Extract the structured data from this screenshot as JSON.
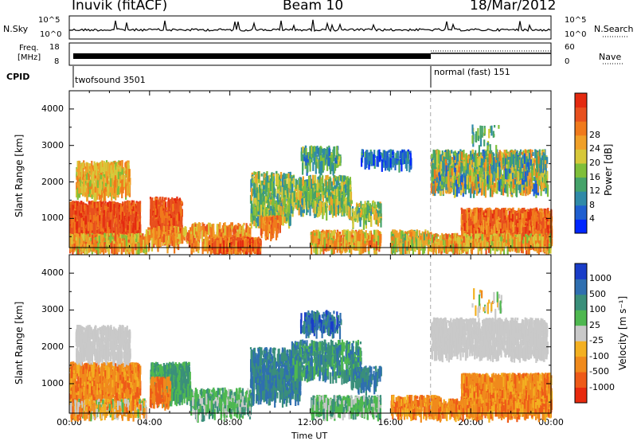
{
  "header": {
    "station": "Inuvik (fitACF)",
    "beam": "Beam 10",
    "date": "18/Mar/2012"
  },
  "strips": {
    "nsky_label": "N.Sky",
    "nsky_ticks": [
      "10^5",
      "10^0"
    ],
    "nsearch_label": "N.Search",
    "nsearch_ticks": [
      "10^5",
      "10^0"
    ],
    "freq_label_1": "Freq.",
    "freq_label_2": "[MHz]",
    "freq_ticks": [
      "18",
      "8"
    ],
    "nave_label": "Nave",
    "nave_ticks": [
      "60",
      "0"
    ],
    "cpid_label": "CPID",
    "cpid_segments": [
      {
        "name": "twofsound 3501"
      },
      {
        "name": "normal (fast) 151"
      }
    ]
  },
  "chart_data": [
    {
      "type": "heatmap",
      "panel": "power",
      "ylabel": "Slant Range [km]",
      "yticks": [
        "1000",
        "2000",
        "3000",
        "4000"
      ],
      "ylim": [
        200,
        4500
      ],
      "colorbar_label": "Power [dB]",
      "colorbar_ticks": [
        "4",
        "8",
        "12",
        "16",
        "20",
        "24",
        "28"
      ],
      "colorbar_colors": [
        "#0026ff",
        "#1f5fd0",
        "#2f8aa8",
        "#45a36a",
        "#7fbf3a",
        "#d7c83a",
        "#f0a028",
        "#f07a1c",
        "#e8501e",
        "#e42a10"
      ],
      "approx_regions": [
        {
          "time": "00:00-03:30",
          "range_km": "700-1500",
          "power_db": "28"
        },
        {
          "time": "00:30-03:00",
          "range_km": "1900-2600",
          "power_db": "20-24"
        },
        {
          "time": "04:00-05:30",
          "range_km": "700-1600",
          "power_db": "24-28"
        },
        {
          "time": "09:30-11:00",
          "range_km": "1000-2200",
          "power_db": "12-20"
        },
        {
          "time": "18:00-23:30",
          "range_km": "2000-2900",
          "power_db": "8-20"
        },
        {
          "time": "19:30-24:00",
          "range_km": "600-1300",
          "power_db": "24-28"
        }
      ]
    },
    {
      "type": "heatmap",
      "panel": "velocity",
      "xlabel": "Time UT",
      "ylabel": "Slant Range [km]",
      "xticks": [
        "00:00",
        "04:00",
        "08:00",
        "12:00",
        "16:00",
        "20:00",
        "00:00"
      ],
      "yticks": [
        "1000",
        "2000",
        "3000",
        "4000"
      ],
      "ylim": [
        200,
        4500
      ],
      "colorbar_label": "Velocity [m s⁻¹]",
      "colorbar_ticks": [
        "1000",
        "500",
        "100",
        "25",
        "-25",
        "-100",
        "-500",
        "-1000"
      ],
      "colorbar_colors": [
        "#1a3dc8",
        "#2f6fb0",
        "#3a8f7a",
        "#4fb850",
        "#c9c9c9",
        "#f3b021",
        "#f08a1c",
        "#ee5a18",
        "#e82a0e"
      ],
      "approx_regions": [
        {
          "time": "00:00-03:30",
          "range_km": "600-1600",
          "velocity": "-100 to -500"
        },
        {
          "time": "00:30-03:00",
          "range_km": "1900-2600",
          "velocity": "-25 to 25"
        },
        {
          "time": "04:00-06:00",
          "range_km": "700-1600",
          "velocity": "100 to 500"
        },
        {
          "time": "09:00-15:00",
          "range_km": "700-2000",
          "velocity": "100 to 500"
        },
        {
          "time": "18:00-23:30",
          "range_km": "2000-2800",
          "velocity": "-25 to 25"
        },
        {
          "time": "19:30-24:00",
          "range_km": "600-1300",
          "velocity": "-100 to -500"
        }
      ]
    }
  ]
}
